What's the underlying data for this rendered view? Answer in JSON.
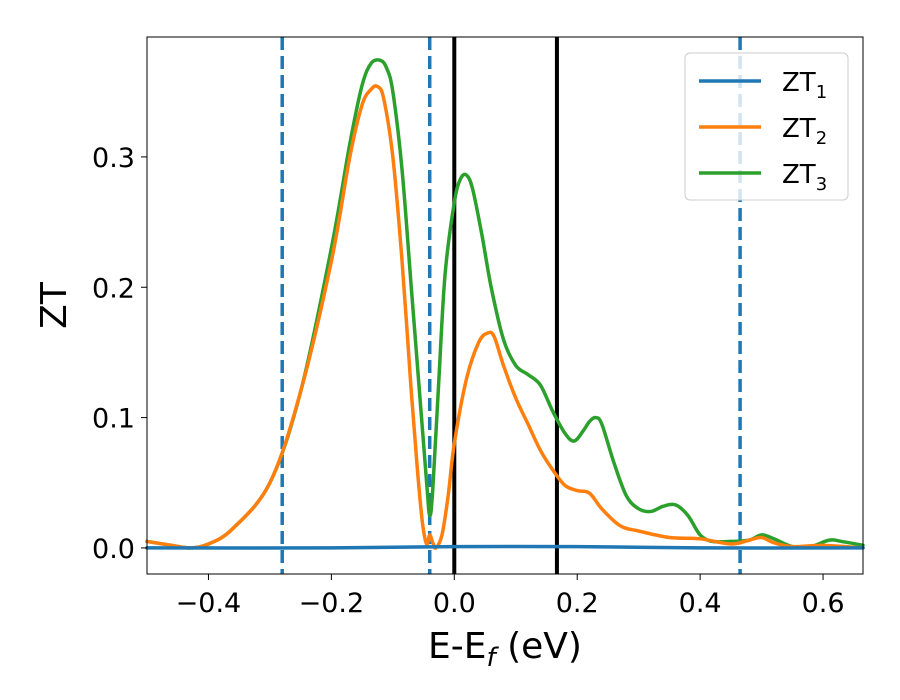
{
  "chart_data": {
    "type": "line",
    "xlabel": "E-E",
    "xlabel_sub": "f",
    "xlabel_unit": " (eV)",
    "ylabel": "ZT",
    "xlim": [
      -0.5,
      0.665
    ],
    "ylim": [
      -0.02,
      0.392
    ],
    "xticks": [
      -0.4,
      -0.2,
      0.0,
      0.2,
      0.4,
      0.6
    ],
    "xtick_labels": [
      "−0.4",
      "−0.2",
      "0.0",
      "0.2",
      "0.4",
      "0.6"
    ],
    "yticks": [
      0.0,
      0.1,
      0.2,
      0.3
    ],
    "ytick_labels": [
      "0.0",
      "0.1",
      "0.2",
      "0.3"
    ],
    "grid": false,
    "legend_position": "top-right",
    "vlines_solid": [
      0.0,
      0.167
    ],
    "vlines_dashed": [
      -0.28,
      -0.04,
      0.465
    ],
    "series": [
      {
        "name": "ZT",
        "sub": "1",
        "color": "#1f77b4",
        "x": [
          -0.5,
          -0.2,
          0.0,
          0.2,
          0.4,
          0.665
        ],
        "y": [
          0.0,
          0.0,
          0.001,
          0.001,
          0.0,
          0.0
        ]
      },
      {
        "name": "ZT",
        "sub": "2",
        "color": "#ff7f0e",
        "x": [
          -0.5,
          -0.46,
          -0.43,
          -0.4,
          -0.36,
          -0.3,
          -0.25,
          -0.2,
          -0.17,
          -0.15,
          -0.135,
          -0.125,
          -0.115,
          -0.1,
          -0.085,
          -0.07,
          -0.06,
          -0.052,
          -0.045,
          -0.04,
          -0.035,
          -0.03,
          -0.02,
          -0.01,
          0.0,
          0.02,
          0.04,
          0.055,
          0.065,
          0.08,
          0.1,
          0.12,
          0.14,
          0.16,
          0.18,
          0.2,
          0.22,
          0.24,
          0.27,
          0.3,
          0.35,
          0.4,
          0.45,
          0.48,
          0.5,
          0.52,
          0.55,
          0.6,
          0.665
        ],
        "y": [
          0.005,
          0.002,
          0.0,
          0.003,
          0.015,
          0.05,
          0.12,
          0.22,
          0.3,
          0.34,
          0.352,
          0.354,
          0.345,
          0.3,
          0.22,
          0.12,
          0.06,
          0.02,
          0.003,
          0.01,
          0.004,
          0.0,
          0.01,
          0.04,
          0.08,
          0.13,
          0.158,
          0.165,
          0.162,
          0.14,
          0.115,
          0.095,
          0.075,
          0.06,
          0.048,
          0.044,
          0.042,
          0.03,
          0.017,
          0.013,
          0.008,
          0.007,
          0.003,
          0.006,
          0.008,
          0.004,
          0.001,
          0.002,
          0.0
        ]
      },
      {
        "name": "ZT",
        "sub": "3",
        "color": "#2ca02c",
        "x": [
          -0.5,
          -0.46,
          -0.43,
          -0.4,
          -0.36,
          -0.3,
          -0.25,
          -0.2,
          -0.17,
          -0.15,
          -0.135,
          -0.12,
          -0.11,
          -0.1,
          -0.085,
          -0.07,
          -0.055,
          -0.045,
          -0.04,
          -0.035,
          -0.025,
          -0.015,
          0.0,
          0.01,
          0.02,
          0.03,
          0.045,
          0.06,
          0.08,
          0.1,
          0.12,
          0.14,
          0.16,
          0.18,
          0.195,
          0.21,
          0.22,
          0.23,
          0.24,
          0.26,
          0.28,
          0.3,
          0.32,
          0.34,
          0.36,
          0.38,
          0.4,
          0.42,
          0.45,
          0.48,
          0.5,
          0.52,
          0.55,
          0.58,
          0.61,
          0.63,
          0.665
        ],
        "y": [
          0.005,
          0.002,
          0.0,
          0.003,
          0.015,
          0.05,
          0.12,
          0.23,
          0.31,
          0.355,
          0.372,
          0.374,
          0.368,
          0.35,
          0.29,
          0.2,
          0.11,
          0.05,
          0.025,
          0.045,
          0.13,
          0.21,
          0.265,
          0.283,
          0.286,
          0.275,
          0.24,
          0.2,
          0.16,
          0.14,
          0.133,
          0.125,
          0.105,
          0.088,
          0.082,
          0.09,
          0.097,
          0.1,
          0.095,
          0.065,
          0.04,
          0.03,
          0.028,
          0.032,
          0.033,
          0.025,
          0.01,
          0.005,
          0.005,
          0.006,
          0.01,
          0.007,
          0.001,
          0.001,
          0.006,
          0.005,
          0.002
        ]
      }
    ]
  }
}
